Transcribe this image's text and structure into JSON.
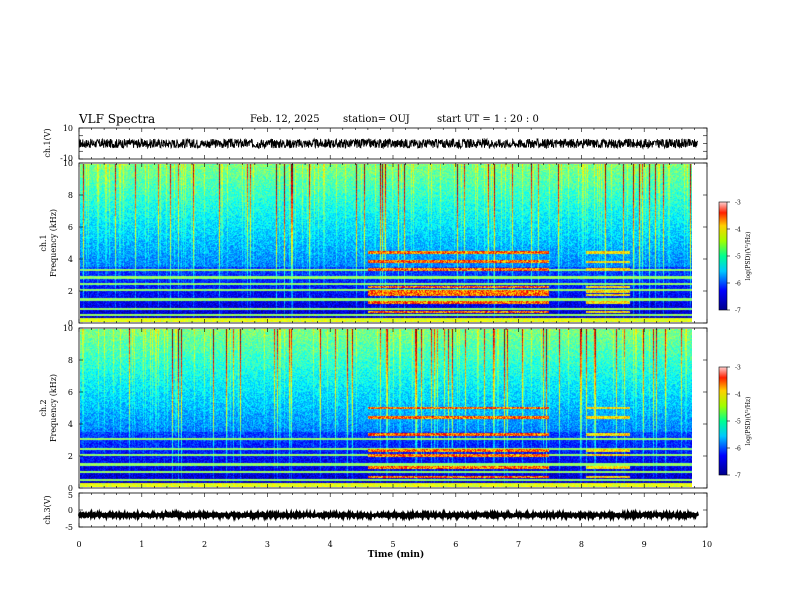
{
  "header": {
    "title": "VLF Spectra",
    "date": "Feb. 12, 2025",
    "station": "station= OUJ",
    "start": "start UT =  1 : 20 : 0"
  },
  "chart_data": [
    {
      "id": "ch1-waveform",
      "type": "line",
      "ylabel": "ch.1(V)",
      "ylim": [
        -10,
        10
      ],
      "yticks": [
        "10",
        "-10"
      ],
      "xlim": [
        0,
        10
      ],
      "baseline": 0,
      "color": "#000000"
    },
    {
      "id": "ch1-spectrogram",
      "type": "heatmap",
      "ylabel": "ch.1\nFrequency (kHz)",
      "ylabel_lines": [
        "ch.1",
        "Frequency (kHz)"
      ],
      "ylim": [
        0,
        10
      ],
      "yticks": [
        "0",
        "2",
        "4",
        "6",
        "8",
        "10"
      ],
      "xlim": [
        0,
        9.8
      ],
      "colorbar": {
        "label": "log(PSD)(V²/Hz)",
        "range": [
          -7,
          -3
        ],
        "ticks": [
          "-3",
          "-4",
          "-5",
          "-6",
          "-7"
        ]
      },
      "bands_khz": [
        0.4,
        0.8,
        1.4,
        2.0,
        2.4,
        2.8,
        3.3
      ],
      "burst_interval_min": [
        4.6,
        7.5
      ],
      "burst_lines_khz": [
        0.6,
        1.2,
        1.7,
        1.9,
        2.2,
        3.3,
        3.8,
        4.4
      ]
    },
    {
      "id": "ch2-spectrogram",
      "type": "heatmap",
      "ylabel": "ch.2\nFrequency (kHz)",
      "ylabel_lines": [
        "ch.2",
        "Frequency (kHz)"
      ],
      "ylim": [
        0,
        10
      ],
      "yticks": [
        "0",
        "2",
        "4",
        "6",
        "8",
        "10"
      ],
      "xlim": [
        0,
        9.8
      ],
      "colorbar": {
        "label": "log(PSD)(V²/Hz)",
        "range": [
          -7,
          -3
        ],
        "ticks": [
          "-3",
          "-4",
          "-5",
          "-6",
          "-7"
        ]
      },
      "bands_khz": [
        0.4,
        0.9,
        1.4,
        2.0,
        2.4,
        3.0
      ],
      "burst_interval_min": [
        4.6,
        7.5
      ],
      "burst_lines_khz": [
        0.6,
        1.2,
        2.0,
        2.3,
        3.3,
        4.4,
        5.0
      ]
    },
    {
      "id": "ch3-waveform",
      "type": "line",
      "ylabel": "ch.3(V)",
      "ylim": [
        -5,
        5
      ],
      "yticks": [
        "5",
        "0",
        "-5"
      ],
      "xlim": [
        0,
        10
      ],
      "baseline": -1.5,
      "color": "#000000",
      "xlabel": "Time (min)",
      "xticks": [
        "0",
        "1",
        "2",
        "3",
        "4",
        "5",
        "6",
        "7",
        "8",
        "9",
        "10"
      ]
    }
  ]
}
